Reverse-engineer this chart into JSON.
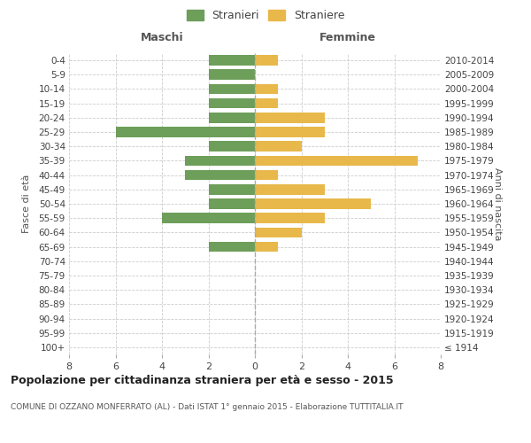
{
  "age_groups": [
    "100+",
    "95-99",
    "90-94",
    "85-89",
    "80-84",
    "75-79",
    "70-74",
    "65-69",
    "60-64",
    "55-59",
    "50-54",
    "45-49",
    "40-44",
    "35-39",
    "30-34",
    "25-29",
    "20-24",
    "15-19",
    "10-14",
    "5-9",
    "0-4"
  ],
  "birth_years": [
    "≤ 1914",
    "1915-1919",
    "1920-1924",
    "1925-1929",
    "1930-1934",
    "1935-1939",
    "1940-1944",
    "1945-1949",
    "1950-1954",
    "1955-1959",
    "1960-1964",
    "1965-1969",
    "1970-1974",
    "1975-1979",
    "1980-1984",
    "1985-1989",
    "1990-1994",
    "1995-1999",
    "2000-2004",
    "2005-2009",
    "2010-2014"
  ],
  "males": [
    0,
    0,
    0,
    0,
    0,
    0,
    0,
    2,
    0,
    4,
    2,
    2,
    3,
    3,
    2,
    6,
    2,
    2,
    2,
    2,
    2
  ],
  "females": [
    0,
    0,
    0,
    0,
    0,
    0,
    0,
    1,
    2,
    3,
    5,
    3,
    1,
    7,
    2,
    3,
    3,
    1,
    1,
    0,
    1
  ],
  "male_color": "#6d9e5a",
  "female_color": "#e8b84b",
  "title": "Popolazione per cittadinanza straniera per età e sesso - 2015",
  "subtitle": "COMUNE DI OZZANO MONFERRATO (AL) - Dati ISTAT 1° gennaio 2015 - Elaborazione TUTTITALIA.IT",
  "legend_male": "Stranieri",
  "legend_female": "Straniere",
  "xlabel_left": "Maschi",
  "xlabel_right": "Femmine",
  "ylabel_left": "Fasce di età",
  "ylabel_right": "Anni di nascita",
  "xlim": 8,
  "background_color": "#ffffff",
  "grid_color": "#cccccc"
}
